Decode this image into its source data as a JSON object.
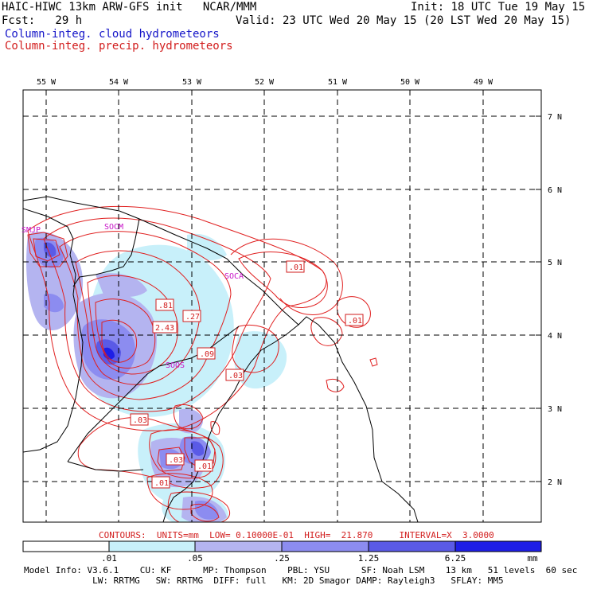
{
  "header": {
    "title_left": "HAIC-HIWC 13km ARW-GFS init   NCAR/MMM",
    "fcst": "Fcst:   29 h",
    "init": "Init: 18 UTC Tue 19 May 15",
    "valid": "Valid: 23 UTC Wed 20 May 15 (20 LST Wed 20 May 15)",
    "legend_cloud": "Column-integ. cloud hydrometeors",
    "legend_precip": "Column-integ. precip. hydrometeors"
  },
  "colors": {
    "cloud": "#1414c8",
    "precip": "#d21e1e",
    "station": "#c814c8",
    "shade_1": "#c8f0fa",
    "shade_2": "#b4b4f0",
    "shade_3": "#8c8cf0",
    "shade_4": "#5a5ae6",
    "shade_5": "#1e1ee6"
  },
  "map": {
    "lon_labels": [
      "55 W",
      "54 W",
      "53 W",
      "52 W",
      "51 W",
      "50 W",
      "49 W"
    ],
    "lat_labels": [
      "7 N",
      "6 N",
      "5 N",
      "4 N",
      "3 N",
      "2 N"
    ],
    "stations": [
      "SMJP",
      "SOCM",
      "SOCA",
      "SOOS"
    ],
    "contour_labels": [
      ".01",
      ".81",
      ".27",
      "2.43",
      ".01",
      ".09",
      ".03",
      ".03",
      ".03",
      ".01",
      ".01"
    ]
  },
  "footer": {
    "contours": "CONTOURS:  UNITS=mm  LOW= 0.10000E-01  HIGH=  21.870     INTERVAL=X  3.0000",
    "colorbar_ticks": [
      ".01",
      ".05",
      ".25",
      "1.25",
      "6.25"
    ],
    "unit": "mm",
    "model_line1": "Model Info: V3.6.1    CU: KF      MP: Thompson    PBL: YSU      SF: Noah LSM    13 km   51 levels  60 sec",
    "model_line2": "             LW: RRTMG   SW: RRTMG  DIFF: full   KM: 2D Smagor DAMP: Rayleigh3   SFLAY: MM5"
  }
}
